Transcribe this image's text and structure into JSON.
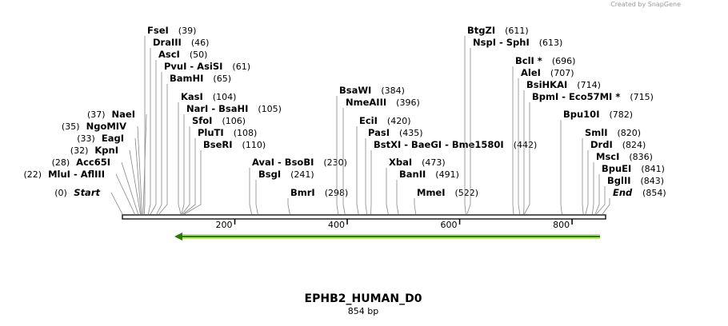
{
  "header": {
    "credit": "Created by SnapGene"
  },
  "map": {
    "title": "EPHB2_HUMAN_D0",
    "length": "854 bp",
    "ruler": [
      200,
      400,
      600,
      800
    ],
    "sites": [
      {
        "name": "Start",
        "position": "(0)"
      },
      {
        "name": "MluI  -  AflIII",
        "position": "(22)"
      },
      {
        "name": "Acc65I",
        "position": "(28)"
      },
      {
        "name": "KpnI",
        "position": "(32)"
      },
      {
        "name": "EagI",
        "position": "(33)"
      },
      {
        "name": "NgoMIV",
        "position": "(35)"
      },
      {
        "name": "NaeI",
        "position": "(37)"
      },
      {
        "name": "FseI",
        "position": "(39)"
      },
      {
        "name": "DraIII",
        "position": "(46)"
      },
      {
        "name": "AscI",
        "position": "(50)"
      },
      {
        "name": "PvuI  -  AsiSI",
        "position": "(61)"
      },
      {
        "name": "BamHI",
        "position": "(65)"
      },
      {
        "name": "KasI",
        "position": "(104)"
      },
      {
        "name": "NarI  -  BsaHI",
        "position": "(105)"
      },
      {
        "name": "SfoI",
        "position": "(106)"
      },
      {
        "name": "PluTI",
        "position": "(108)"
      },
      {
        "name": "BseRI",
        "position": "(110)"
      },
      {
        "name": "AvaI  -  BsoBI",
        "position": "(230)"
      },
      {
        "name": "BsgI",
        "position": "(241)"
      },
      {
        "name": "BmrI",
        "position": "(298)"
      },
      {
        "name": "BsaWI",
        "position": "(384)"
      },
      {
        "name": "NmeAIII",
        "position": "(396)"
      },
      {
        "name": "EciI",
        "position": "(420)"
      },
      {
        "name": "PasI",
        "position": "(435)"
      },
      {
        "name": "BstXI  -  BaeGI  -  Bme1580I",
        "position": "(442)"
      },
      {
        "name": "XbaI",
        "position": "(473)"
      },
      {
        "name": "BanII",
        "position": "(491)"
      },
      {
        "name": "MmeI",
        "position": "(522)"
      },
      {
        "name": "BtgZI",
        "position": "(611)"
      },
      {
        "name": "NspI  -  SphI",
        "position": "(613)"
      },
      {
        "name": "BclI *",
        "position": "(696)"
      },
      {
        "name": "AleI",
        "position": "(707)"
      },
      {
        "name": "BsiHKAI",
        "position": "(714)"
      },
      {
        "name": "BpmI  -  Eco57MI *",
        "position": "(715)"
      },
      {
        "name": "Bpu10I",
        "position": "(782)"
      },
      {
        "name": "SmlI",
        "position": "(820)"
      },
      {
        "name": "DrdI",
        "position": "(824)"
      },
      {
        "name": "MscI",
        "position": "(836)"
      },
      {
        "name": "BpuEI",
        "position": "(841)"
      },
      {
        "name": "BglII",
        "position": "(843)"
      },
      {
        "name": "End",
        "position": "(854)"
      }
    ]
  }
}
